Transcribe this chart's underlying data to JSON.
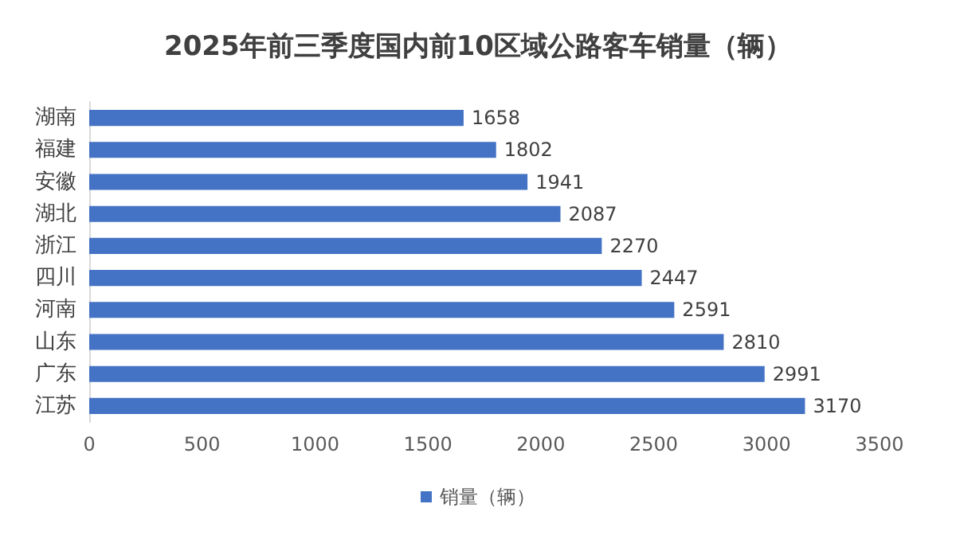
{
  "chart_data": {
    "type": "bar",
    "orientation": "horizontal",
    "title": "2025年前三季度国内前10区域公路客车销量（辆）",
    "categories": [
      "湖南",
      "福建",
      "安徽",
      "湖北",
      "浙江",
      "四川",
      "河南",
      "山东",
      "广东",
      "江苏"
    ],
    "series": [
      {
        "name": "销量（辆）",
        "color": "#4472c4",
        "values": [
          1658,
          1802,
          1941,
          2087,
          2270,
          2447,
          2591,
          2810,
          2991,
          3170
        ]
      }
    ],
    "xlim": [
      0,
      3500
    ],
    "xticks": [
      0,
      500,
      1000,
      1500,
      2000,
      2500,
      3000,
      3500
    ],
    "data_labels": true,
    "grid": false,
    "legend": "bottom"
  }
}
